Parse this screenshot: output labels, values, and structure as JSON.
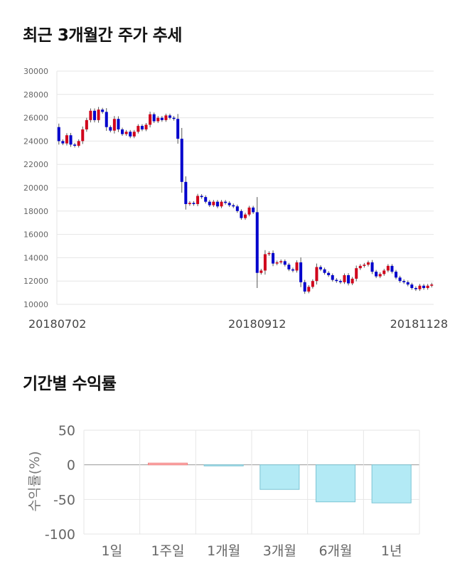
{
  "titles": {
    "price_trend": "최근 3개월간 주가 추세",
    "returns": "기간별 수익률"
  },
  "colors": {
    "up": "#d0021b",
    "down": "#0000cc",
    "positive_bar": "#ffb3b3",
    "negative_bar": "#b3eaf5",
    "grid": "#e6e6e6"
  },
  "chart_data": [
    {
      "type": "candlestick",
      "title": "최근 3개월간 주가 추세",
      "ylim": [
        10000,
        30000
      ],
      "y_ticks": [
        10000,
        12000,
        14000,
        16000,
        18000,
        20000,
        22000,
        24000,
        26000,
        28000,
        30000
      ],
      "x_tick_labels": [
        {
          "index": 0,
          "label": "20180702"
        },
        {
          "index": 50,
          "label": "20180912"
        },
        {
          "index": 100,
          "label": "20181128"
        }
      ],
      "grid": true,
      "closes": [
        24000,
        23800,
        24500,
        23700,
        23600,
        24000,
        25000,
        25800,
        26600,
        25800,
        26700,
        26500,
        25200,
        24900,
        25900,
        25000,
        24600,
        24800,
        24400,
        24800,
        25300,
        25000,
        25400,
        26300,
        25700,
        26000,
        25800,
        26200,
        26000,
        25900,
        24200,
        20500,
        18600,
        18700,
        18600,
        19300,
        19200,
        18800,
        18500,
        18800,
        18400,
        18800,
        18700,
        18500,
        18400,
        18000,
        17400,
        17700,
        18300,
        17900,
        12700,
        12900,
        14300,
        14400,
        13500,
        13600,
        13700,
        13400,
        13000,
        12900,
        13600,
        11900,
        11100,
        11500,
        12000,
        13200,
        13000,
        12700,
        12500,
        12100,
        12000,
        11900,
        12500,
        11800,
        12200,
        13100,
        13300,
        13400,
        13600,
        12800,
        12400,
        12600,
        12900,
        13300,
        12800,
        12300,
        12000,
        11900,
        11700,
        11400,
        11300,
        11600,
        11400,
        11600,
        11700
      ]
    },
    {
      "type": "bar",
      "categories": [
        "1일",
        "1주일",
        "1개월",
        "3개월",
        "6개월",
        "1년"
      ],
      "values": [
        0,
        2.5,
        -1.0,
        -35.5,
        -53.5,
        -55.0
      ],
      "ylabel": "수익률(%)",
      "ylim": [
        -100,
        50
      ],
      "y_ticks": [
        50,
        0,
        -50,
        -100
      ],
      "grid": true
    }
  ]
}
